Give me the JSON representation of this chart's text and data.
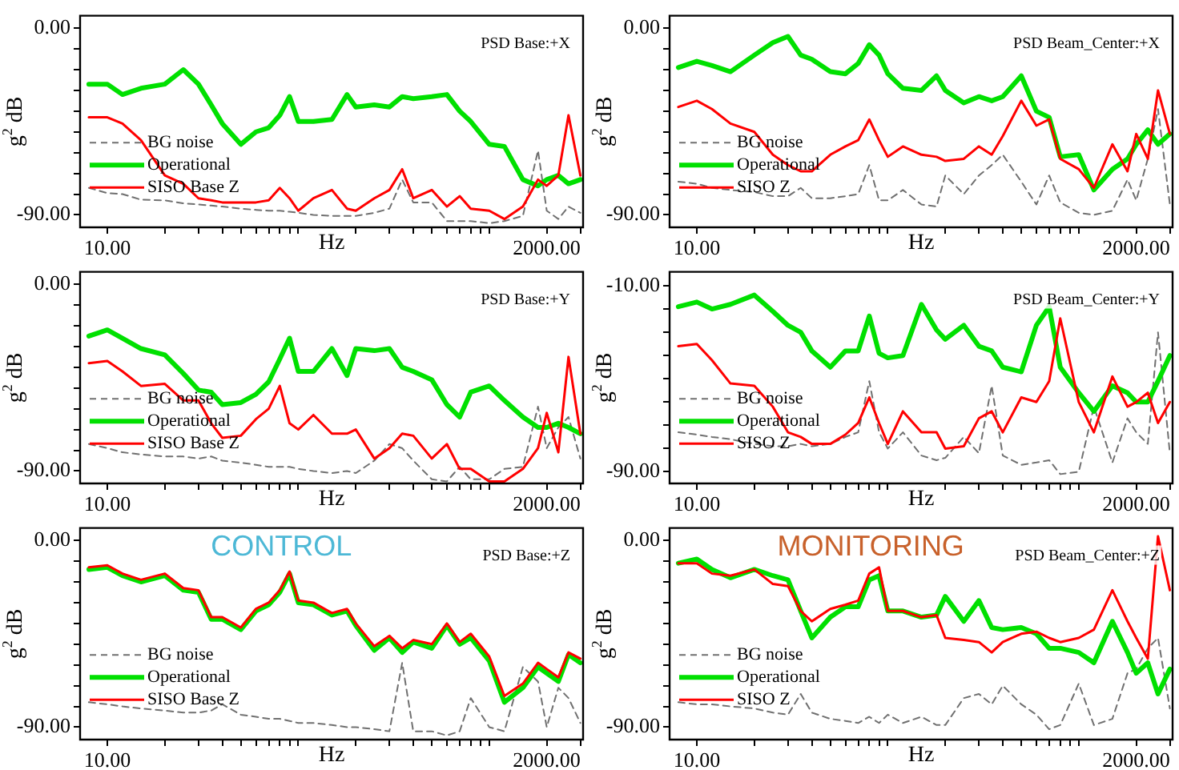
{
  "chart_data": [
    {
      "type": "line",
      "title": "PSD Base:+X",
      "xlabel": "Hz",
      "ylabel": "g$^{2}$ dB",
      "log": "x",
      "grid": false,
      "legend": "bottom left",
      "marker": "none",
      "x": [
        8,
        10,
        12,
        15,
        20,
        25,
        30,
        35,
        40,
        50,
        60,
        70,
        80,
        90,
        100,
        120,
        150,
        180,
        200,
        250,
        300,
        350,
        400,
        500,
        600,
        700,
        800,
        1000,
        1200,
        1500,
        1800,
        2000,
        2300,
        2600,
        3000
      ],
      "xlim": [
        7.2,
        3100
      ],
      "ylim": [
        -96,
        6
      ],
      "xticks": [
        {
          "value": 10,
          "label": "10.00"
        },
        {
          "value": 20,
          "label": null
        },
        {
          "value": 30,
          "label": null
        },
        {
          "value": 40,
          "label": null
        },
        {
          "value": 50,
          "label": null
        },
        {
          "value": 60,
          "label": null
        },
        {
          "value": 70,
          "label": null
        },
        {
          "value": 80,
          "label": null
        },
        {
          "value": 90,
          "label": null
        },
        {
          "value": 100,
          "label": null
        },
        {
          "value": 200,
          "label": null
        },
        {
          "value": 300,
          "label": null
        },
        {
          "value": 400,
          "label": null
        },
        {
          "value": 500,
          "label": null
        },
        {
          "value": 600,
          "label": null
        },
        {
          "value": 700,
          "label": null
        },
        {
          "value": 800,
          "label": null
        },
        {
          "value": 900,
          "label": null
        },
        {
          "value": 1000,
          "label": null
        },
        {
          "value": 2000,
          "label": "2000.00"
        },
        {
          "value": 3000,
          "label": null
        }
      ],
      "yticks": [
        {
          "value": 0,
          "label": "0.00"
        },
        {
          "value": -10,
          "label": null
        },
        {
          "value": -20,
          "label": null
        },
        {
          "value": -30,
          "label": null
        },
        {
          "value": -40,
          "label": null
        },
        {
          "value": -50,
          "label": null
        },
        {
          "value": -60,
          "label": null
        },
        {
          "value": -70,
          "label": null
        },
        {
          "value": -80,
          "label": null
        },
        {
          "value": -90,
          "label": "-90.00"
        }
      ],
      "series": [
        {
          "name": "BG noise",
          "color": "#707070",
          "line_style": "dashed",
          "values": [
            -77,
            -79.5,
            -80,
            -82.7,
            -83,
            -84.4,
            -85,
            -85.5,
            -86,
            -87,
            -87.6,
            -88,
            -88,
            -88.5,
            -89,
            -90,
            -90.5,
            -90.5,
            -90.5,
            -89,
            -87,
            -73,
            -84,
            -84,
            -93,
            -93,
            -93,
            -94,
            -93,
            -90.5,
            -59,
            -88,
            -92,
            -86,
            -89
          ]
        },
        {
          "name": "Operational",
          "color": "#00e000",
          "values": [
            -27,
            -27,
            -32,
            -29,
            -27,
            -20,
            -27,
            -37,
            -46,
            -56,
            -50,
            -48,
            -42,
            -33,
            -45,
            -45,
            -44,
            -32,
            -38,
            -37,
            -38,
            -33,
            -34,
            -33,
            -32,
            -40,
            -45,
            -56,
            -57,
            -73,
            -76,
            -73,
            -71,
            -75,
            -73
          ]
        },
        {
          "name": "SISO Base Z",
          "color": "#ff0000",
          "values": [
            -43,
            -43,
            -46,
            -54,
            -71,
            -75,
            -82,
            -83,
            -84,
            -84,
            -84,
            -83,
            -77,
            -82,
            -88,
            -82,
            -78,
            -87,
            -88,
            -82,
            -78,
            -68,
            -82,
            -78,
            -86,
            -81,
            -87,
            -88,
            -92,
            -86,
            -73,
            -76,
            -71,
            -42,
            -71
          ]
        }
      ]
    },
    {
      "type": "line",
      "title": "PSD Beam_Center:+X",
      "xlabel": "Hz",
      "ylabel": "g$^{2}$ dB",
      "log": "x",
      "grid": false,
      "legend": "bottom left",
      "marker": "none",
      "x": [
        8,
        10,
        12,
        15,
        20,
        25,
        30,
        35,
        40,
        50,
        60,
        70,
        80,
        90,
        100,
        120,
        150,
        180,
        200,
        250,
        300,
        350,
        400,
        500,
        600,
        700,
        800,
        1000,
        1200,
        1500,
        1800,
        2000,
        2300,
        2600,
        3000
      ],
      "xlim": [
        7.2,
        3100
      ],
      "ylim": [
        -96,
        6
      ],
      "xticks": [
        {
          "value": 10,
          "label": "10.00"
        },
        {
          "value": 20,
          "label": null
        },
        {
          "value": 30,
          "label": null
        },
        {
          "value": 40,
          "label": null
        },
        {
          "value": 50,
          "label": null
        },
        {
          "value": 60,
          "label": null
        },
        {
          "value": 70,
          "label": null
        },
        {
          "value": 80,
          "label": null
        },
        {
          "value": 90,
          "label": null
        },
        {
          "value": 100,
          "label": null
        },
        {
          "value": 200,
          "label": null
        },
        {
          "value": 300,
          "label": null
        },
        {
          "value": 400,
          "label": null
        },
        {
          "value": 500,
          "label": null
        },
        {
          "value": 600,
          "label": null
        },
        {
          "value": 700,
          "label": null
        },
        {
          "value": 800,
          "label": null
        },
        {
          "value": 900,
          "label": null
        },
        {
          "value": 1000,
          "label": null
        },
        {
          "value": 2000,
          "label": "2000.00"
        },
        {
          "value": 3000,
          "label": null
        }
      ],
      "yticks": [
        {
          "value": 0,
          "label": "0.00"
        },
        {
          "value": -10,
          "label": null
        },
        {
          "value": -20,
          "label": null
        },
        {
          "value": -30,
          "label": null
        },
        {
          "value": -40,
          "label": null
        },
        {
          "value": -50,
          "label": null
        },
        {
          "value": -60,
          "label": null
        },
        {
          "value": -70,
          "label": null
        },
        {
          "value": -80,
          "label": null
        },
        {
          "value": -90,
          "label": "-90.00"
        }
      ],
      "series": [
        {
          "name": "BG noise",
          "color": "#707070",
          "line_style": "dashed",
          "values": [
            -74,
            -75,
            -77,
            -78,
            -79,
            -81,
            -81,
            -77,
            -82,
            -82,
            -81,
            -80,
            -66,
            -83,
            -83,
            -78,
            -85,
            -86,
            -71,
            -80,
            -71,
            -66,
            -61,
            -74,
            -85,
            -71,
            -84,
            -89,
            -90,
            -88,
            -73,
            -83,
            -63,
            -39,
            -85
          ]
        },
        {
          "name": "Operational",
          "color": "#00e000",
          "values": [
            -19,
            -16,
            -18,
            -21,
            -13,
            -7,
            -4,
            -13,
            -15,
            -21,
            -22,
            -17,
            -8,
            -13,
            -22,
            -29,
            -30,
            -23,
            -30,
            -36,
            -33,
            -35,
            -33,
            -23,
            -40,
            -43,
            -62,
            -61,
            -78,
            -68,
            -63,
            -56,
            -49,
            -56,
            -51
          ]
        },
        {
          "name": "SISO Z",
          "color": "#ff0000",
          "values": [
            -38,
            -35,
            -39,
            -46,
            -50,
            -61,
            -66,
            -69,
            -69,
            -61,
            -57,
            -54,
            -44,
            -54,
            -62,
            -57,
            -61,
            -62,
            -64,
            -63,
            -57,
            -61,
            -52,
            -35,
            -47,
            -44,
            -63,
            -68,
            -77,
            -56,
            -69,
            -51,
            -63,
            -30,
            -51
          ]
        }
      ]
    },
    {
      "type": "line",
      "title": "PSD Base:+Y",
      "xlabel": "Hz",
      "ylabel": "g$^{2}$ dB",
      "log": "x",
      "grid": false,
      "legend": "bottom left",
      "marker": "none",
      "x": [
        8,
        10,
        12,
        15,
        20,
        25,
        30,
        35,
        40,
        50,
        60,
        70,
        80,
        90,
        100,
        120,
        150,
        180,
        200,
        250,
        300,
        350,
        400,
        500,
        600,
        700,
        800,
        1000,
        1200,
        1500,
        1800,
        2000,
        2300,
        2600,
        3000
      ],
      "xlim": [
        7.2,
        3100
      ],
      "ylim": [
        -96,
        6
      ],
      "xticks": [
        {
          "value": 10,
          "label": "10.00"
        },
        {
          "value": 20,
          "label": null
        },
        {
          "value": 30,
          "label": null
        },
        {
          "value": 40,
          "label": null
        },
        {
          "value": 50,
          "label": null
        },
        {
          "value": 60,
          "label": null
        },
        {
          "value": 70,
          "label": null
        },
        {
          "value": 80,
          "label": null
        },
        {
          "value": 90,
          "label": null
        },
        {
          "value": 100,
          "label": null
        },
        {
          "value": 200,
          "label": null
        },
        {
          "value": 300,
          "label": null
        },
        {
          "value": 400,
          "label": null
        },
        {
          "value": 500,
          "label": null
        },
        {
          "value": 600,
          "label": null
        },
        {
          "value": 700,
          "label": null
        },
        {
          "value": 800,
          "label": null
        },
        {
          "value": 900,
          "label": null
        },
        {
          "value": 1000,
          "label": null
        },
        {
          "value": 2000,
          "label": "2000.00"
        },
        {
          "value": 3000,
          "label": null
        }
      ],
      "yticks": [
        {
          "value": 0,
          "label": "0.00"
        },
        {
          "value": -10,
          "label": null
        },
        {
          "value": -20,
          "label": null
        },
        {
          "value": -30,
          "label": null
        },
        {
          "value": -40,
          "label": null
        },
        {
          "value": -50,
          "label": null
        },
        {
          "value": -60,
          "label": null
        },
        {
          "value": -70,
          "label": null
        },
        {
          "value": -80,
          "label": null
        },
        {
          "value": -90,
          "label": "-90.00"
        }
      ],
      "series": [
        {
          "name": "BG noise",
          "color": "#707070",
          "line_style": "dashed",
          "values": [
            -77,
            -79,
            -81,
            -82,
            -83,
            -83,
            -84,
            -83,
            -85,
            -86,
            -87,
            -88,
            -88,
            -88,
            -89,
            -90,
            -91,
            -90,
            -91,
            -85,
            -77,
            -79,
            -85,
            -94,
            -95,
            -88,
            -94,
            -94,
            -89,
            -88,
            -59,
            -79,
            -69,
            -64,
            -84
          ]
        },
        {
          "name": "Operational",
          "color": "#00e000",
          "values": [
            -25,
            -22,
            -26,
            -31,
            -34,
            -43,
            -51,
            -52,
            -58,
            -57,
            -53,
            -47,
            -36,
            -26,
            -42,
            -42,
            -31,
            -44,
            -31,
            -32,
            -31,
            -40,
            -42,
            -46,
            -58,
            -64,
            -52,
            -49,
            -56,
            -64,
            -69,
            -69,
            -67,
            -69,
            -72
          ]
        },
        {
          "name": "SISO Base Z",
          "color": "#ff0000",
          "values": [
            -38,
            -37,
            -42,
            -49,
            -48,
            -56,
            -56,
            -67,
            -74,
            -73,
            -65,
            -60,
            -49,
            -67,
            -70,
            -63,
            -72,
            -72,
            -70,
            -84,
            -79,
            -72,
            -73,
            -84,
            -77,
            -89,
            -89,
            -95,
            -95,
            -89,
            -79,
            -62,
            -81,
            -35,
            -72
          ]
        }
      ]
    },
    {
      "type": "line",
      "title": "PSD Beam_Center:+Y",
      "xlabel": "Hz",
      "ylabel": "g$^{2}$ dB",
      "log": "x",
      "grid": false,
      "legend": "bottom left",
      "marker": "none",
      "x": [
        8,
        10,
        12,
        15,
        20,
        25,
        30,
        35,
        40,
        50,
        60,
        70,
        80,
        90,
        100,
        120,
        150,
        180,
        200,
        250,
        300,
        350,
        400,
        500,
        600,
        700,
        800,
        1000,
        1200,
        1500,
        1800,
        2000,
        2300,
        2600,
        3000
      ],
      "xlim": [
        7.2,
        3100
      ],
      "ylim": [
        -95,
        -4
      ],
      "xticks": [
        {
          "value": 10,
          "label": "10.00"
        },
        {
          "value": 20,
          "label": null
        },
        {
          "value": 30,
          "label": null
        },
        {
          "value": 40,
          "label": null
        },
        {
          "value": 50,
          "label": null
        },
        {
          "value": 60,
          "label": null
        },
        {
          "value": 70,
          "label": null
        },
        {
          "value": 80,
          "label": null
        },
        {
          "value": 90,
          "label": null
        },
        {
          "value": 100,
          "label": null
        },
        {
          "value": 200,
          "label": null
        },
        {
          "value": 300,
          "label": null
        },
        {
          "value": 400,
          "label": null
        },
        {
          "value": 500,
          "label": null
        },
        {
          "value": 600,
          "label": null
        },
        {
          "value": 700,
          "label": null
        },
        {
          "value": 800,
          "label": null
        },
        {
          "value": 900,
          "label": null
        },
        {
          "value": 1000,
          "label": null
        },
        {
          "value": 2000,
          "label": "2000.00"
        },
        {
          "value": 3000,
          "label": null
        }
      ],
      "yticks": [
        {
          "value": -10,
          "label": "-10.00"
        },
        {
          "value": -20,
          "label": null
        },
        {
          "value": -30,
          "label": null
        },
        {
          "value": -40,
          "label": null
        },
        {
          "value": -50,
          "label": null
        },
        {
          "value": -60,
          "label": null
        },
        {
          "value": -70,
          "label": null
        },
        {
          "value": -80,
          "label": null
        },
        {
          "value": -90,
          "label": "-90.00"
        }
      ],
      "series": [
        {
          "name": "BG noise",
          "color": "#707070",
          "line_style": "dashed",
          "values": [
            -73,
            -74,
            -75,
            -76,
            -78,
            -79,
            -79,
            -78,
            -79,
            -78,
            -75,
            -73,
            -51,
            -73,
            -80,
            -73,
            -83,
            -85,
            -84,
            -75,
            -82,
            -53,
            -83,
            -87,
            -86,
            -85,
            -91,
            -90,
            -62,
            -86,
            -67,
            -73,
            -78,
            -30,
            -82
          ]
        },
        {
          "name": "Operational",
          "color": "#00e000",
          "values": [
            -19,
            -17,
            -20,
            -18,
            -14,
            -21,
            -27,
            -30,
            -38,
            -45,
            -38,
            -38,
            -23,
            -39,
            -41,
            -40,
            -18,
            -29,
            -33,
            -27,
            -36,
            -38,
            -45,
            -47,
            -27,
            -19,
            -45,
            -56,
            -64,
            -53,
            -56,
            -60,
            -60,
            -51,
            -40
          ]
        },
        {
          "name": "SISO Z",
          "color": "#ff0000",
          "values": [
            -36,
            -35,
            -42,
            -52,
            -53,
            -62,
            -73,
            -75,
            -78,
            -78,
            -74,
            -69,
            -58,
            -69,
            -78,
            -64,
            -73,
            -73,
            -80,
            -79,
            -67,
            -64,
            -73,
            -58,
            -60,
            -51,
            -24,
            -60,
            -73,
            -49,
            -62,
            -60,
            -56,
            -69,
            -60
          ]
        }
      ]
    },
    {
      "type": "line",
      "title": "PSD Base:+Z",
      "xlabel": "Hz",
      "ylabel": "g$^{2}$ dB",
      "log": "x",
      "grid": false,
      "legend": "bottom left",
      "marker": "none",
      "annotations": [
        "CONTROL"
      ],
      "x": [
        8,
        10,
        12,
        15,
        20,
        25,
        30,
        35,
        40,
        50,
        60,
        70,
        80,
        90,
        100,
        120,
        150,
        180,
        200,
        250,
        300,
        350,
        400,
        500,
        600,
        700,
        800,
        1000,
        1200,
        1500,
        1800,
        2000,
        2300,
        2600,
        3000
      ],
      "xlim": [
        7.2,
        3100
      ],
      "ylim": [
        -96,
        6
      ],
      "xticks": [
        {
          "value": 10,
          "label": "10.00"
        },
        {
          "value": 20,
          "label": null
        },
        {
          "value": 30,
          "label": null
        },
        {
          "value": 40,
          "label": null
        },
        {
          "value": 50,
          "label": null
        },
        {
          "value": 60,
          "label": null
        },
        {
          "value": 70,
          "label": null
        },
        {
          "value": 80,
          "label": null
        },
        {
          "value": 90,
          "label": null
        },
        {
          "value": 100,
          "label": null
        },
        {
          "value": 200,
          "label": null
        },
        {
          "value": 300,
          "label": null
        },
        {
          "value": 400,
          "label": null
        },
        {
          "value": 500,
          "label": null
        },
        {
          "value": 600,
          "label": null
        },
        {
          "value": 700,
          "label": null
        },
        {
          "value": 800,
          "label": null
        },
        {
          "value": 900,
          "label": null
        },
        {
          "value": 1000,
          "label": null
        },
        {
          "value": 2000,
          "label": "2000.00"
        },
        {
          "value": 3000,
          "label": null
        }
      ],
      "yticks": [
        {
          "value": 0,
          "label": "0.00"
        },
        {
          "value": -10,
          "label": null
        },
        {
          "value": -20,
          "label": null
        },
        {
          "value": -30,
          "label": null
        },
        {
          "value": -40,
          "label": null
        },
        {
          "value": -50,
          "label": null
        },
        {
          "value": -60,
          "label": null
        },
        {
          "value": -70,
          "label": null
        },
        {
          "value": -80,
          "label": null
        },
        {
          "value": -90,
          "label": "-90.00"
        }
      ],
      "series": [
        {
          "name": "BG noise",
          "color": "#707070",
          "line_style": "dashed",
          "values": [
            -78,
            -79,
            -80,
            -81,
            -82,
            -83,
            -83,
            -82,
            -79,
            -84,
            -85,
            -86,
            -86,
            -87,
            -88,
            -88,
            -89,
            -90,
            -90,
            -91,
            -92,
            -59,
            -92,
            -92,
            -94,
            -92,
            -76,
            -90,
            -92,
            -61,
            -68,
            -90,
            -71,
            -76,
            -88
          ]
        },
        {
          "name": "Operational",
          "color": "#00e000",
          "values": [
            -14,
            -13,
            -17,
            -20,
            -17,
            -24,
            -25,
            -38,
            -38,
            -43,
            -34,
            -31,
            -25,
            -16,
            -30,
            -31,
            -36,
            -34,
            -41,
            -53,
            -47,
            -54,
            -49,
            -52,
            -41,
            -50,
            -47,
            -58,
            -78,
            -71,
            -61,
            -64,
            -68,
            -55,
            -59
          ]
        },
        {
          "name": "SISO Base Z",
          "color": "#ff0000",
          "values": [
            -13,
            -12,
            -16,
            -19,
            -16,
            -23,
            -24,
            -37,
            -37,
            -42,
            -33,
            -30,
            -24,
            -15,
            -29,
            -30,
            -35,
            -33,
            -40,
            -51,
            -46,
            -52,
            -48,
            -50,
            -40,
            -49,
            -45,
            -56,
            -75,
            -69,
            -59,
            -62,
            -66,
            -54,
            -57
          ]
        }
      ]
    },
    {
      "type": "line",
      "title": "PSD Beam_Center:+Z",
      "xlabel": "Hz",
      "ylabel": "g$^{2}$ dB",
      "log": "x",
      "grid": false,
      "legend": "bottom left",
      "marker": "none",
      "annotations": [
        "MONITORING"
      ],
      "x": [
        8,
        10,
        12,
        15,
        20,
        25,
        30,
        35,
        40,
        50,
        60,
        70,
        80,
        90,
        100,
        120,
        150,
        180,
        200,
        250,
        300,
        350,
        400,
        500,
        600,
        700,
        800,
        1000,
        1200,
        1500,
        1800,
        2000,
        2300,
        2600,
        3000
      ],
      "xlim": [
        7.2,
        3100
      ],
      "ylim": [
        -96,
        6
      ],
      "xticks": [
        {
          "value": 10,
          "label": "10.00"
        },
        {
          "value": 20,
          "label": null
        },
        {
          "value": 30,
          "label": null
        },
        {
          "value": 40,
          "label": null
        },
        {
          "value": 50,
          "label": null
        },
        {
          "value": 60,
          "label": null
        },
        {
          "value": 70,
          "label": null
        },
        {
          "value": 80,
          "label": null
        },
        {
          "value": 90,
          "label": null
        },
        {
          "value": 100,
          "label": null
        },
        {
          "value": 200,
          "label": null
        },
        {
          "value": 300,
          "label": null
        },
        {
          "value": 400,
          "label": null
        },
        {
          "value": 500,
          "label": null
        },
        {
          "value": 600,
          "label": null
        },
        {
          "value": 700,
          "label": null
        },
        {
          "value": 800,
          "label": null
        },
        {
          "value": 900,
          "label": null
        },
        {
          "value": 1000,
          "label": null
        },
        {
          "value": 2000,
          "label": "2000.00"
        },
        {
          "value": 3000,
          "label": null
        }
      ],
      "yticks": [
        {
          "value": 0,
          "label": "0.00"
        },
        {
          "value": -10,
          "label": null
        },
        {
          "value": -20,
          "label": null
        },
        {
          "value": -30,
          "label": null
        },
        {
          "value": -40,
          "label": null
        },
        {
          "value": -50,
          "label": null
        },
        {
          "value": -60,
          "label": null
        },
        {
          "value": -70,
          "label": null
        },
        {
          "value": -80,
          "label": null
        },
        {
          "value": -90,
          "label": "-90.00"
        }
      ],
      "series": [
        {
          "name": "BG noise",
          "color": "#707070",
          "line_style": "dashed",
          "values": [
            -78,
            -79,
            -79,
            -80,
            -81,
            -83,
            -84,
            -74,
            -83,
            -86,
            -87,
            -88,
            -85,
            -88,
            -84,
            -88,
            -85,
            -89,
            -89,
            -76,
            -74,
            -79,
            -70,
            -79,
            -84,
            -91,
            -89,
            -69,
            -89,
            -86,
            -64,
            -62,
            -52,
            -47,
            -81
          ]
        },
        {
          "name": "Operational",
          "color": "#00e000",
          "values": [
            -11,
            -9,
            -14,
            -18,
            -14,
            -17,
            -19,
            -34,
            -47,
            -37,
            -32,
            -32,
            -19,
            -17,
            -34,
            -34,
            -37,
            -36,
            -27,
            -39,
            -29,
            -42,
            -43,
            -42,
            -45,
            -52,
            -52,
            -54,
            -59,
            -39,
            -54,
            -64,
            -59,
            -74,
            -62
          ]
        },
        {
          "name": "SISO Z",
          "color": "#ff0000",
          "values": [
            -11,
            -11,
            -16,
            -17,
            -14,
            -21,
            -22,
            -34,
            -39,
            -33,
            -31,
            -29,
            -16,
            -13,
            -34,
            -34,
            -37,
            -36,
            -47,
            -48,
            -49,
            -54,
            -49,
            -45,
            -44,
            -47,
            -49,
            -47,
            -43,
            -24,
            -39,
            -47,
            -57,
            2,
            -24
          ]
        }
      ]
    }
  ]
}
